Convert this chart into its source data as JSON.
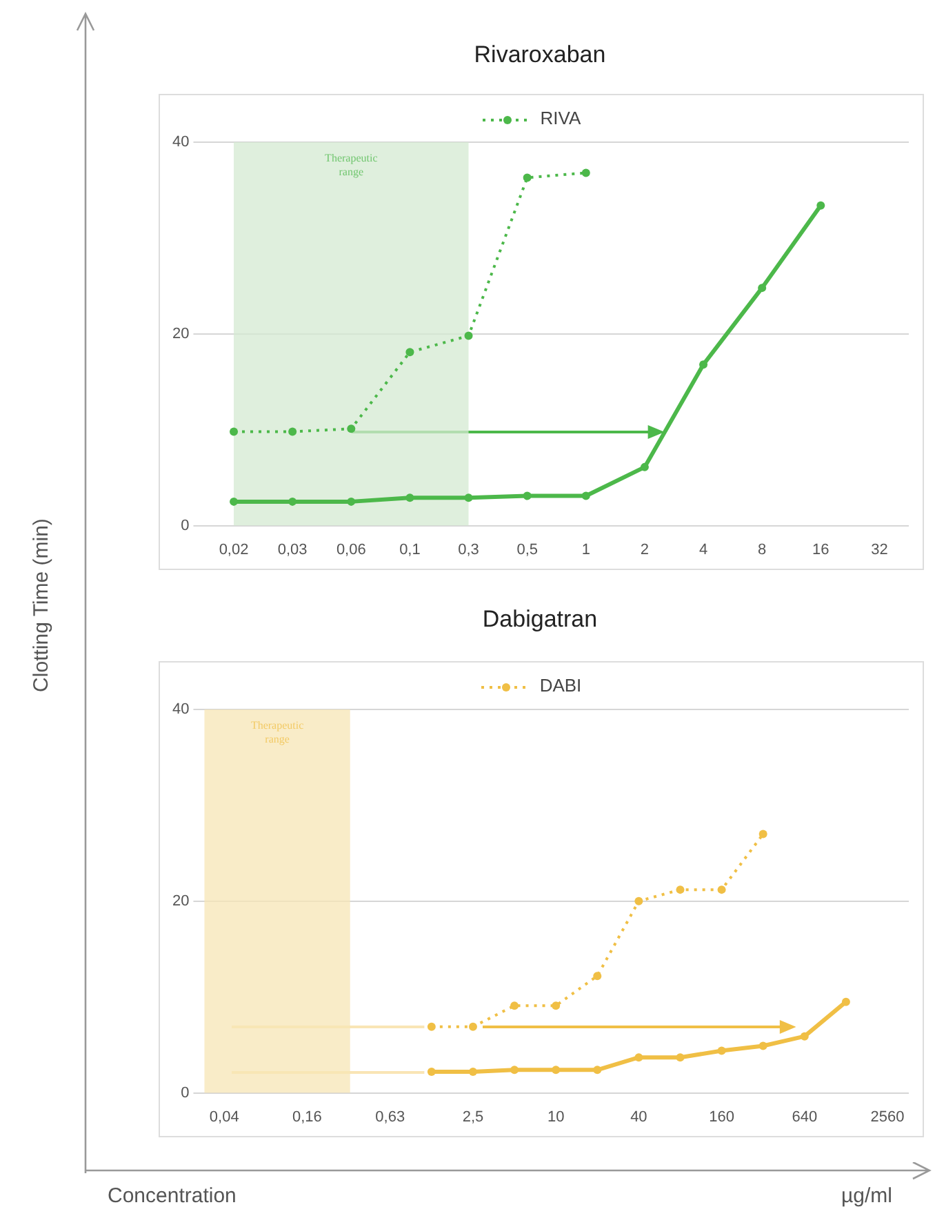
{
  "chart_data": [
    {
      "type": "line",
      "title": "Rivaroxaban",
      "ylabel": "Clotting Time (min)",
      "categories": [
        "0,02",
        "0,03",
        "0,06",
        "0,1",
        "0,3",
        "0,5",
        "1",
        "2",
        "4",
        "8",
        "16",
        "32"
      ],
      "series": [
        {
          "name": "RIVA",
          "color": "#4cb84a",
          "line_style": "dotted",
          "values": [
            9.8,
            9.8,
            10.1,
            18.1,
            19.8,
            36.3,
            36.8,
            null,
            null,
            null,
            null,
            null
          ]
        },
        {
          "color": "#4cb84a",
          "line_style": "solid",
          "values": [
            2.5,
            2.5,
            2.5,
            2.9,
            2.9,
            3.1,
            3.1,
            6.1,
            16.8,
            24.8,
            33.4,
            null
          ]
        }
      ],
      "ylim": [
        0,
        40
      ],
      "yticks": [
        0,
        20,
        40
      ],
      "grid": "y",
      "legend": "top",
      "marker": "circle",
      "bands": [
        {
          "axis": "x",
          "from": "0,02",
          "to": "0,3",
          "label": "Therapeutic range",
          "color": "#d4ead2"
        }
      ]
    },
    {
      "type": "line",
      "title": "Dabigatran",
      "xlabel": "Concentration",
      "log": "x",
      "x": [
        1.25,
        2.5,
        5,
        10,
        20,
        40,
        80,
        160,
        320,
        640,
        1280
      ],
      "series": [
        {
          "name": "DABI",
          "color": "#f0bf45",
          "line_style": "dotted",
          "values": [
            6.9,
            6.9,
            9.1,
            9.1,
            12.2,
            20.0,
            21.2,
            21.2,
            27.0,
            null,
            null
          ]
        },
        {
          "color": "#f0bf45",
          "line_style": "solid",
          "values": [
            2.2,
            2.2,
            2.4,
            2.4,
            2.4,
            3.7,
            3.7,
            4.4,
            4.9,
            5.9,
            9.5
          ]
        }
      ],
      "xlim": [
        0.028,
        3660
      ],
      "xticks": [
        {
          "value": 0.039,
          "label": "0,04"
        },
        {
          "value": 0.156,
          "label": "0,16"
        },
        {
          "value": 0.625,
          "label": "0,63"
        },
        {
          "value": 2.5,
          "label": "2,5"
        },
        10,
        40,
        160,
        640,
        2560
      ],
      "ylim": [
        0,
        40
      ],
      "yticks": [
        0,
        20,
        40
      ],
      "grid": "y",
      "legend": "top",
      "marker": "circle",
      "bands": [
        {
          "axis": "x",
          "from": 0.028,
          "to": 0.32,
          "label": "Therapeutic range",
          "color": "#f7e6b5"
        }
      ],
      "annotations": [
        "µg/ml"
      ]
    }
  ]
}
